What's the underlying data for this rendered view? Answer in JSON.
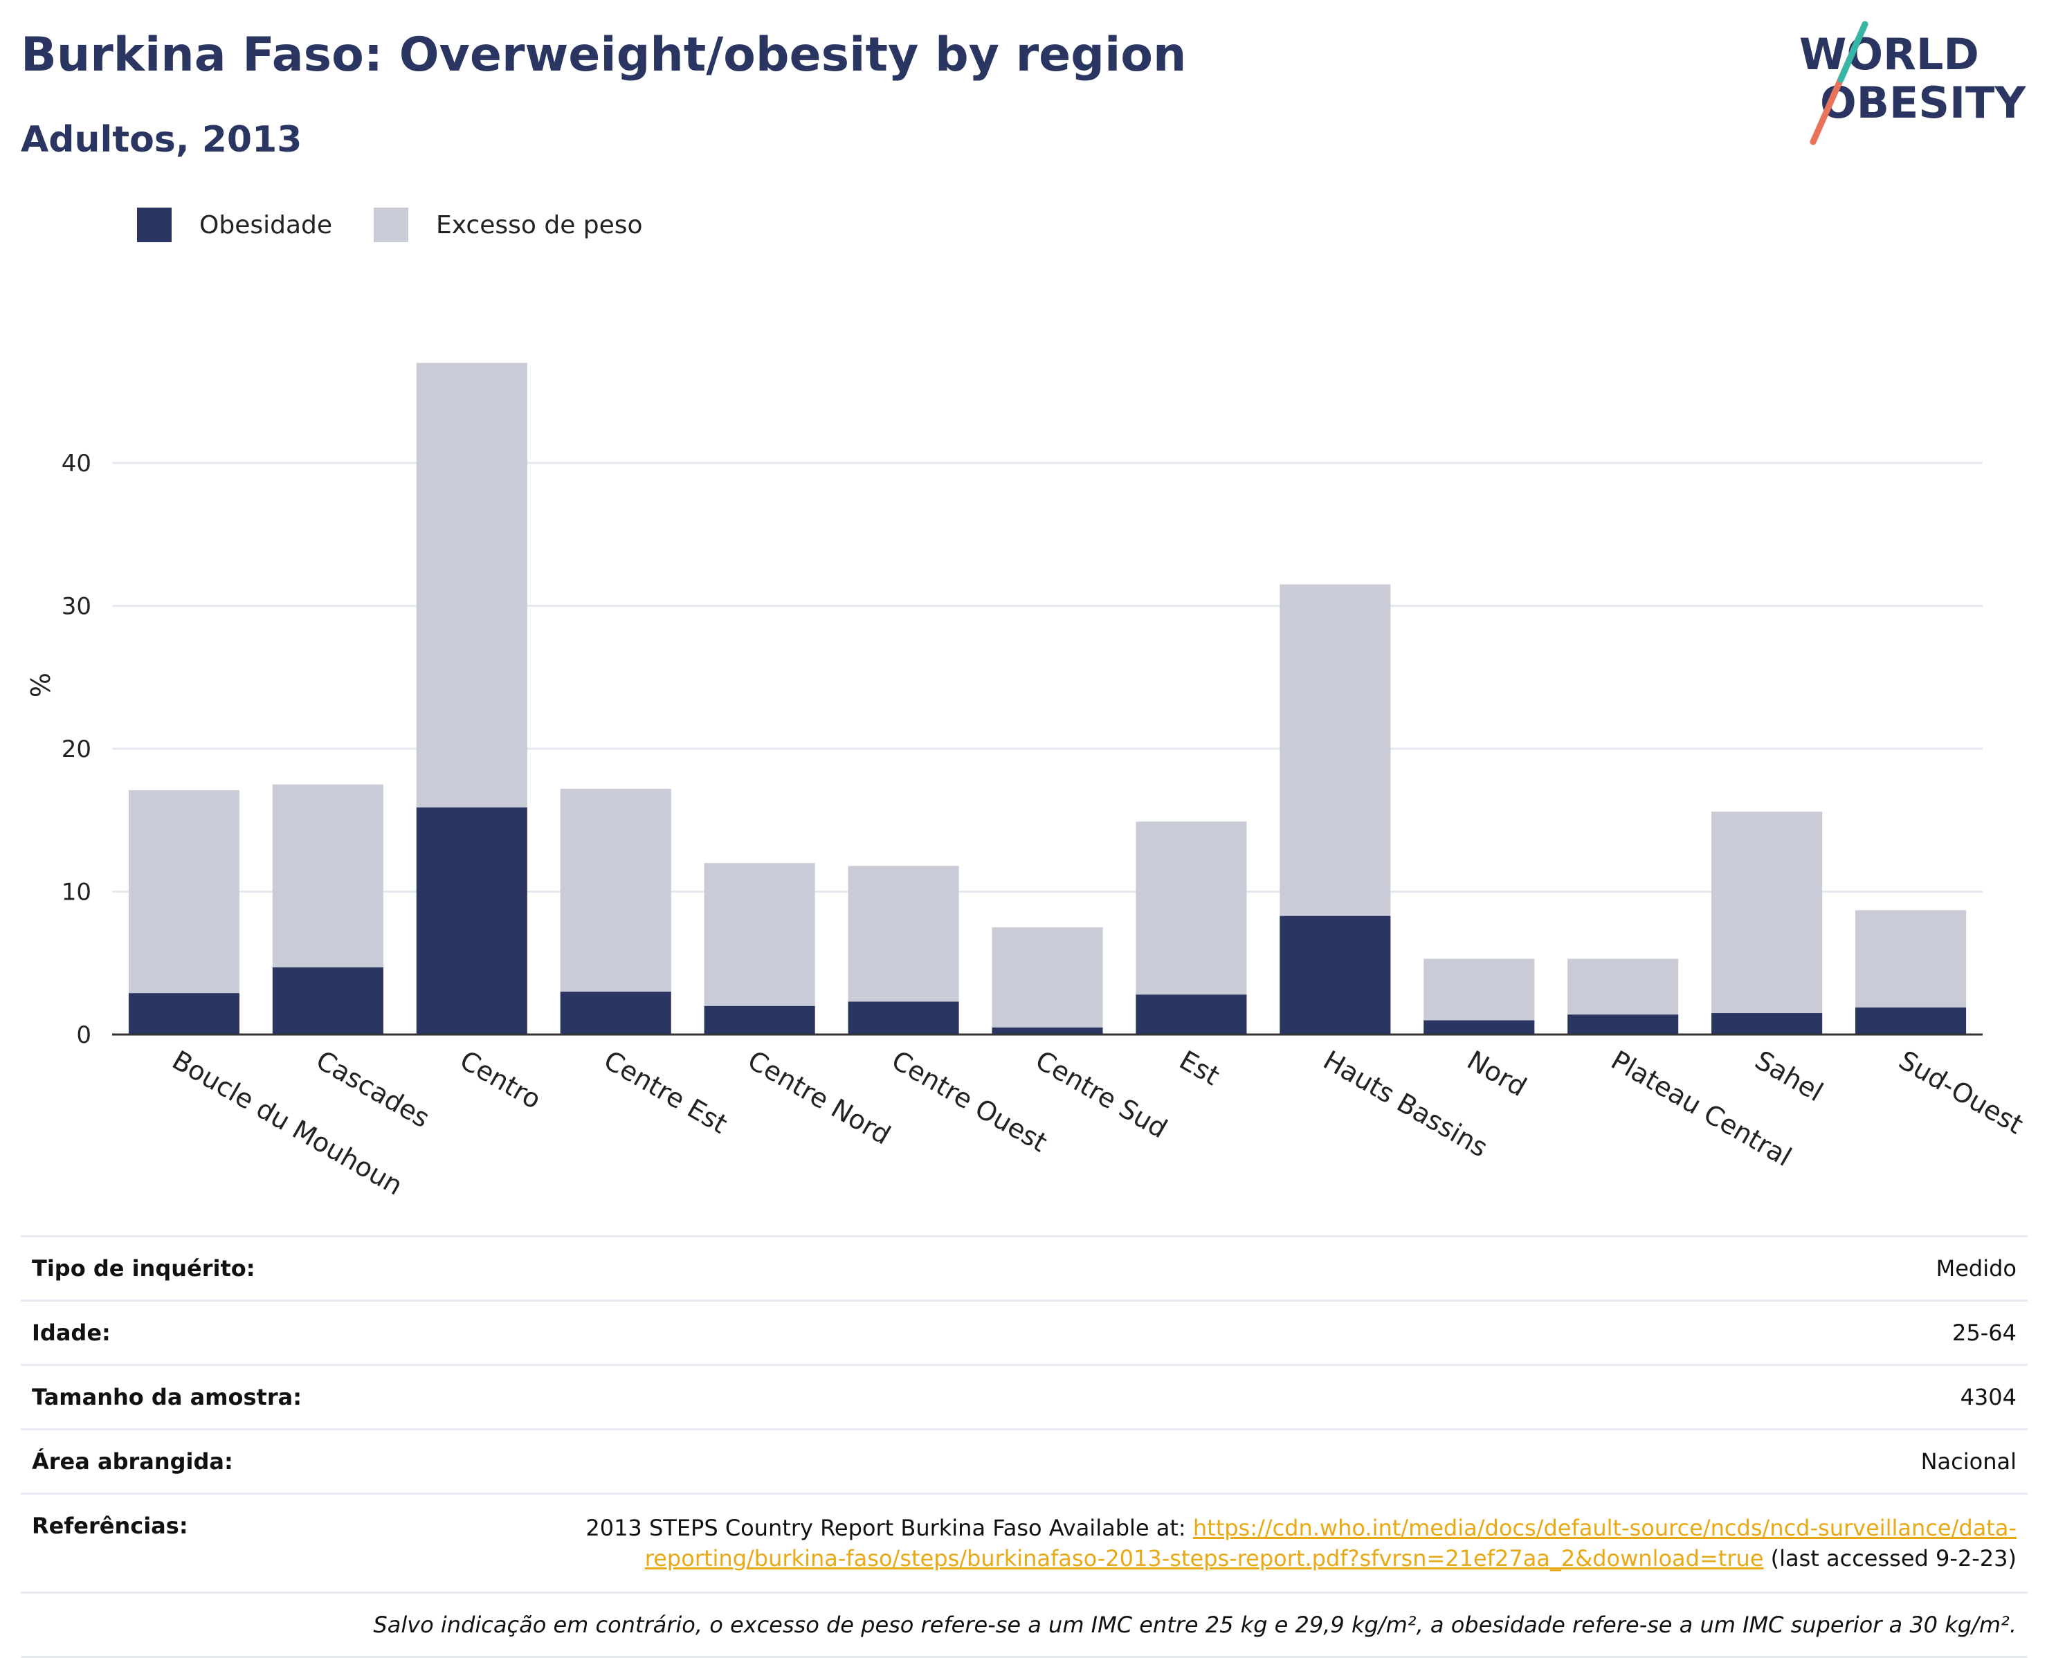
{
  "header": {
    "title": "Burkina Faso: Overweight/obesity by region",
    "subtitle": "Adultos, 2013",
    "logo_text": [
      "WORLD",
      "OBESITY"
    ]
  },
  "legend": [
    {
      "label": "Obesidade",
      "color": "#2a3561"
    },
    {
      "label": "Excesso de peso",
      "color": "#c9cbd7"
    }
  ],
  "chart_data": {
    "type": "bar",
    "stacked": true,
    "ylabel": "%",
    "xlabel": "",
    "ylim": [
      0,
      50
    ],
    "yticks": [
      0,
      10,
      20,
      30,
      40
    ],
    "grid": true,
    "legend_position": "top-left",
    "categories": [
      "Boucle du Mouhoun",
      "Cascades",
      "Centro",
      "Centre Est",
      "Centre Nord",
      "Centre Ouest",
      "Centre Sud",
      "Est",
      "Hauts Bassins",
      "Nord",
      "Plateau Central",
      "Sahel",
      "Sud-Ouest"
    ],
    "series": [
      {
        "name": "Obesidade",
        "color": "#2a3561",
        "values": [
          2.9,
          4.7,
          15.9,
          3.0,
          2.0,
          2.3,
          0.5,
          2.8,
          8.3,
          1.0,
          1.4,
          1.5,
          1.9
        ]
      },
      {
        "name": "Excesso de peso",
        "color": "#c9cbd7",
        "values": [
          14.2,
          12.8,
          31.1,
          14.2,
          10.0,
          9.5,
          7.0,
          12.1,
          23.2,
          4.3,
          3.9,
          14.1,
          6.8
        ]
      }
    ]
  },
  "info": {
    "survey_type": {
      "key": "Tipo de inquérito:",
      "value": "Medido"
    },
    "age": {
      "key": "Idade:",
      "value": "25-64"
    },
    "sample_size": {
      "key": "Tamanho da amostra:",
      "value": "4304"
    },
    "area": {
      "key": "Área abrangida:",
      "value": "Nacional"
    },
    "references": {
      "key": "Referências:",
      "text_before": "2013 STEPS Country Report Burkina Faso Available at: ",
      "link_line1": "https://cdn.who.int/media/docs/default-source/ncds/ncd-surveillance/data-",
      "link_line2": "reporting/burkina-faso/steps/burkinafaso-2013-steps-report.pdf?sfvrsn=21ef27aa_2&download=true",
      "text_after": " (last accessed 9-2-23)"
    },
    "note": "Salvo indicação em contrário, o excesso de peso refere-se a um IMC entre 25 kg e 29,9 kg/m², a obesidade refere-se a um IMC superior a 30 kg/m²."
  }
}
